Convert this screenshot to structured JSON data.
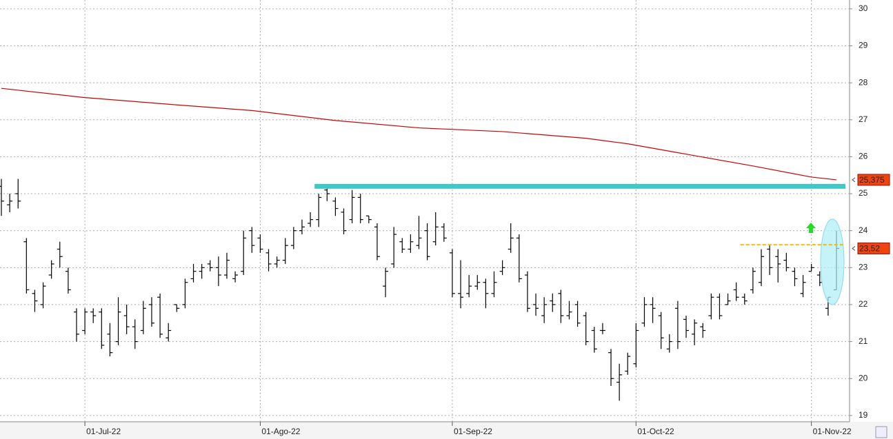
{
  "chart_data": {
    "type": "ohlc",
    "categories": [
      null,
      null,
      null,
      null,
      null,
      null,
      null,
      null,
      null,
      null,
      "01-Jul-22",
      null,
      null,
      null,
      null,
      null,
      null,
      null,
      null,
      null,
      null,
      null,
      null,
      null,
      null,
      null,
      null,
      null,
      null,
      null,
      null,
      "01-Ago-22",
      null,
      null,
      null,
      null,
      null,
      null,
      null,
      null,
      null,
      null,
      null,
      null,
      null,
      null,
      null,
      null,
      null,
      null,
      null,
      null,
      null,
      null,
      "01-Sep-22",
      null,
      null,
      null,
      null,
      null,
      null,
      null,
      null,
      null,
      null,
      null,
      null,
      null,
      null,
      null,
      null,
      null,
      null,
      null,
      null,
      null,
      "01-Oct-22",
      null,
      null,
      null,
      null,
      null,
      null,
      null,
      null,
      null,
      null,
      null,
      null,
      null,
      null,
      null,
      null,
      null,
      null,
      null,
      null,
      "01-Nov-22",
      null,
      null,
      null
    ],
    "open": [
      25.2,
      24.7,
      25.0,
      23.7,
      22.3,
      22.0,
      22.8,
      23.5,
      22.9,
      21.8,
      21.3,
      21.8,
      21.8,
      21.2,
      21.0,
      21.7,
      21.4,
      21.3,
      22.0,
      22.2,
      21.1,
      22.0,
      22.0,
      22.7,
      22.9,
      23.1,
      23.0,
      22.8,
      22.7,
      22.9,
      24.0,
      23.8,
      23.4,
      23.1,
      23.2,
      23.6,
      24.0,
      24.2,
      24.3,
      25.1,
      24.8,
      24.5,
      24.3,
      24.9,
      24.4,
      24.1,
      22.5,
      23.1,
      23.7,
      23.5,
      23.6,
      24.0,
      23.7,
      24.1,
      23.4,
      22.3,
      22.3,
      22.5,
      22.6,
      22.3,
      22.9,
      23.5,
      23.8,
      22.8,
      22.0,
      21.7,
      22.1,
      22.3,
      21.7,
      22.0,
      21.7,
      21.3,
      21.3,
      20.7,
      19.9,
      20.2,
      20.4,
      21.5,
      22.0,
      21.7,
      20.8,
      21.9,
      21.6,
      21.2,
      21.4,
      21.7,
      22.2,
      22.0,
      22.4,
      22.2,
      22.4,
      22.6,
      23.5,
      23.3,
      23.2,
      22.9,
      22.3,
      22.9,
      22.8,
      21.9,
      22.4
    ],
    "high": [
      25.4,
      25.0,
      25.4,
      23.8,
      22.4,
      22.6,
      23.2,
      23.7,
      23.0,
      21.9,
      21.9,
      21.9,
      21.9,
      21.5,
      22.2,
      22.0,
      21.6,
      22.1,
      22.2,
      22.3,
      21.5,
      22.0,
      22.7,
      23.1,
      23.1,
      23.2,
      23.3,
      23.4,
      22.9,
      24.0,
      24.1,
      23.9,
      23.5,
      23.3,
      23.8,
      24.1,
      24.3,
      24.5,
      25.0,
      25.2,
      24.9,
      24.6,
      25.1,
      25.0,
      24.4,
      24.2,
      23.0,
      24.1,
      23.8,
      23.9,
      24.4,
      24.2,
      24.5,
      24.2,
      23.5,
      23.2,
      22.8,
      22.8,
      22.7,
      22.9,
      23.2,
      24.2,
      23.9,
      22.9,
      22.3,
      22.2,
      22.3,
      22.4,
      22.1,
      22.1,
      21.8,
      21.4,
      21.5,
      20.8,
      20.4,
      20.7,
      21.5,
      22.2,
      22.2,
      21.8,
      21.2,
      22.1,
      21.7,
      21.6,
      21.5,
      22.3,
      22.3,
      22.3,
      22.6,
      22.3,
      23.0,
      23.5,
      23.6,
      23.5,
      23.4,
      23.0,
      22.8,
      23.1,
      22.9,
      22.2,
      24.0
    ],
    "low": [
      24.4,
      24.5,
      24.6,
      22.3,
      21.8,
      21.9,
      22.7,
      23.0,
      22.3,
      21.0,
      21.2,
      21.5,
      20.8,
      20.6,
      20.9,
      21.2,
      20.8,
      21.2,
      21.4,
      21.1,
      21.0,
      21.8,
      21.9,
      22.6,
      22.7,
      22.9,
      22.5,
      22.7,
      22.6,
      22.8,
      23.4,
      23.4,
      22.9,
      23.0,
      23.1,
      23.5,
      23.9,
      24.1,
      24.1,
      24.8,
      24.4,
      23.9,
      24.2,
      24.2,
      24.2,
      23.2,
      22.2,
      23.0,
      23.4,
      23.4,
      23.5,
      23.2,
      23.6,
      23.7,
      22.2,
      21.9,
      22.2,
      22.4,
      21.9,
      22.2,
      22.8,
      23.4,
      22.6,
      21.8,
      21.7,
      21.5,
      21.8,
      21.5,
      21.6,
      21.4,
      20.9,
      20.7,
      21.2,
      19.8,
      19.4,
      20.1,
      20.3,
      21.4,
      21.5,
      20.8,
      20.7,
      20.8,
      21.1,
      20.9,
      21.1,
      21.6,
      21.6,
      22.0,
      22.1,
      22.0,
      22.3,
      22.5,
      22.8,
      22.6,
      22.9,
      22.5,
      22.2,
      22.9,
      22.5,
      21.7,
      22.4
    ],
    "close": [
      24.8,
      24.8,
      24.8,
      22.4,
      22.1,
      22.5,
      23.1,
      23.3,
      22.4,
      21.2,
      21.8,
      21.7,
      20.9,
      20.7,
      21.8,
      21.4,
      21.0,
      21.9,
      21.5,
      21.2,
      21.3,
      21.9,
      22.6,
      22.9,
      23.0,
      23.0,
      22.8,
      23.2,
      22.8,
      23.8,
      23.6,
      23.5,
      23.1,
      23.2,
      23.6,
      24.0,
      24.1,
      24.3,
      24.9,
      25.0,
      24.6,
      24.0,
      24.9,
      24.3,
      24.3,
      23.3,
      22.9,
      23.9,
      23.5,
      23.7,
      23.8,
      23.3,
      24.1,
      23.8,
      22.3,
      22.2,
      22.5,
      22.6,
      22.3,
      22.6,
      23.0,
      23.8,
      22.7,
      21.9,
      21.9,
      22.0,
      22.0,
      21.7,
      21.8,
      21.5,
      21.0,
      20.8,
      21.3,
      20.0,
      20.1,
      20.6,
      21.3,
      22.0,
      21.9,
      21.1,
      21.0,
      21.0,
      21.3,
      21.5,
      21.3,
      22.2,
      21.7,
      22.1,
      22.2,
      22.1,
      22.9,
      23.3,
      23.0,
      23.1,
      23.0,
      22.7,
      22.6,
      23.0,
      22.6,
      22.2,
      23.52
    ],
    "color": "#000000",
    "moving_average": {
      "color": "#cc0000",
      "x": [
        0,
        10,
        20,
        30,
        40,
        50,
        60,
        70,
        75,
        80,
        90,
        97,
        100
      ],
      "values": [
        27.85,
        27.6,
        27.42,
        27.25,
        26.98,
        26.78,
        26.68,
        26.5,
        26.35,
        26.15,
        25.75,
        25.45,
        25.375
      ]
    },
    "levels": [
      {
        "value": 25.2,
        "from": 38,
        "color": "#40c8c8"
      },
      {
        "value": 23.62,
        "from": 89,
        "color": "#f0c000",
        "dashed": true
      }
    ],
    "price_labels": [
      {
        "value": 25.375,
        "label": "25,375"
      },
      {
        "value": 23.52,
        "label": "23,52"
      }
    ],
    "ylim": [
      18.83,
      30.24
    ],
    "yticks": [
      19,
      20,
      21,
      22,
      23,
      24,
      25,
      26,
      27,
      28,
      29,
      30
    ],
    "grid": true
  }
}
